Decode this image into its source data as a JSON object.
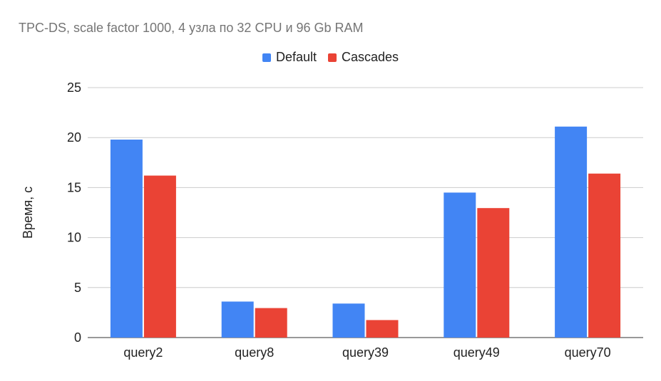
{
  "chart_data": {
    "type": "bar",
    "title": "TPC-DS, scale factor 1000, 4 узла по 32 CPU и 96 Gb RAM",
    "xlabel": "",
    "ylabel": "Время, с",
    "categories": [
      "query2",
      "query8",
      "query39",
      "query49",
      "query70"
    ],
    "series": [
      {
        "name": "Default",
        "color": "#4285f4",
        "values": [
          19.8,
          3.6,
          3.4,
          14.5,
          21.1
        ]
      },
      {
        "name": "Cascades",
        "color": "#ea4335",
        "values": [
          16.2,
          2.95,
          1.75,
          12.95,
          16.4
        ]
      }
    ],
    "ylim": [
      0,
      25
    ],
    "yticks": [
      0,
      5,
      10,
      15,
      20,
      25
    ],
    "grid": true,
    "legend_position": "top"
  }
}
